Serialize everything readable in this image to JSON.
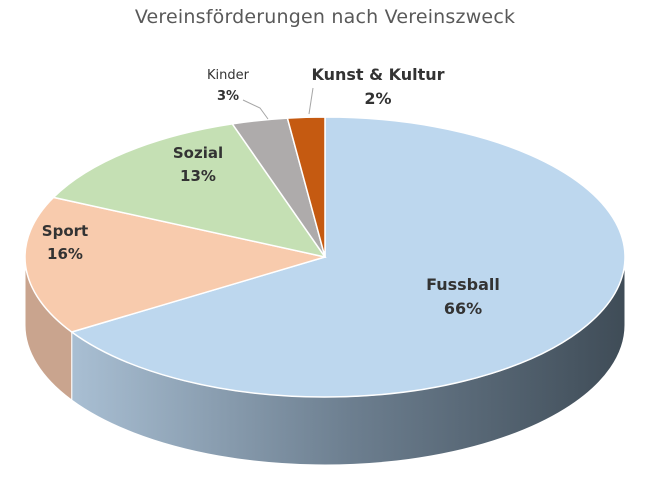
{
  "chart_data": {
    "type": "pie",
    "title": "Vereinsförderungen nach Vereinszweck",
    "categories": [
      "Fussball",
      "Sport",
      "Sozial",
      "Kinder",
      "Kunst & Kultur"
    ],
    "values": [
      66,
      16,
      13,
      3,
      2
    ],
    "labels": [
      "66%",
      "16%",
      "13%",
      "3%",
      "2%"
    ],
    "colors": [
      "#BDD7EE",
      "#F8CBAD",
      "#C5E0B4",
      "#AEABAB",
      "#C55A11"
    ],
    "side_colors": [
      "#4a5763",
      "#c9a48e",
      "#a3ba95",
      "#8c8989",
      "#9c4710"
    ],
    "style": "3d-pie"
  }
}
